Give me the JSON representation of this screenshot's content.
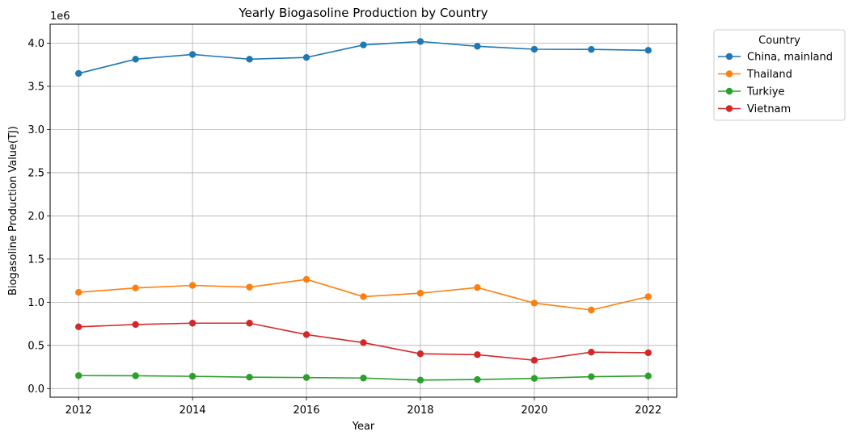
{
  "chart_data": {
    "type": "line",
    "title": "Yearly Biogasoline Production by Country",
    "xlabel": "Year",
    "ylabel": "Biogasoline Production Value(TJ)",
    "y_offset_label": "1e6",
    "x": [
      2012,
      2013,
      2014,
      2015,
      2016,
      2017,
      2018,
      2019,
      2020,
      2021,
      2022
    ],
    "xlim": [
      2011.5,
      2022.5
    ],
    "ylim": [
      -100000,
      4220000
    ],
    "x_ticks": [
      2012,
      2014,
      2016,
      2018,
      2020,
      2022
    ],
    "y_ticks": [
      0,
      500000,
      1000000,
      1500000,
      2000000,
      2500000,
      3000000,
      3500000,
      4000000
    ],
    "y_tick_labels": [
      "0.0",
      "0.5",
      "1.0",
      "1.5",
      "2.0",
      "2.5",
      "3.0",
      "3.5",
      "4.0"
    ],
    "grid": true,
    "legend_title": "Country",
    "legend_position": "outside-upper-right",
    "series": [
      {
        "name": "China, mainland",
        "color": "#1f77b4",
        "values": [
          3650000,
          3815000,
          3870000,
          3815000,
          3835000,
          3980000,
          4020000,
          3965000,
          3930000,
          3928000,
          3918000
        ]
      },
      {
        "name": "Thailand",
        "color": "#ff7f0e",
        "values": [
          1115000,
          1165000,
          1195000,
          1175000,
          1265000,
          1065000,
          1105000,
          1170000,
          990000,
          910000,
          1065000
        ]
      },
      {
        "name": "Turkiye",
        "color": "#2ca02c",
        "values": [
          150000,
          148000,
          142000,
          132000,
          128000,
          122000,
          98000,
          105000,
          118000,
          138000,
          146000
        ]
      },
      {
        "name": "Vietnam",
        "color": "#d62728",
        "values": [
          715000,
          742000,
          758000,
          758000,
          625000,
          532000,
          403000,
          393000,
          328000,
          422000,
          415000
        ]
      }
    ]
  }
}
